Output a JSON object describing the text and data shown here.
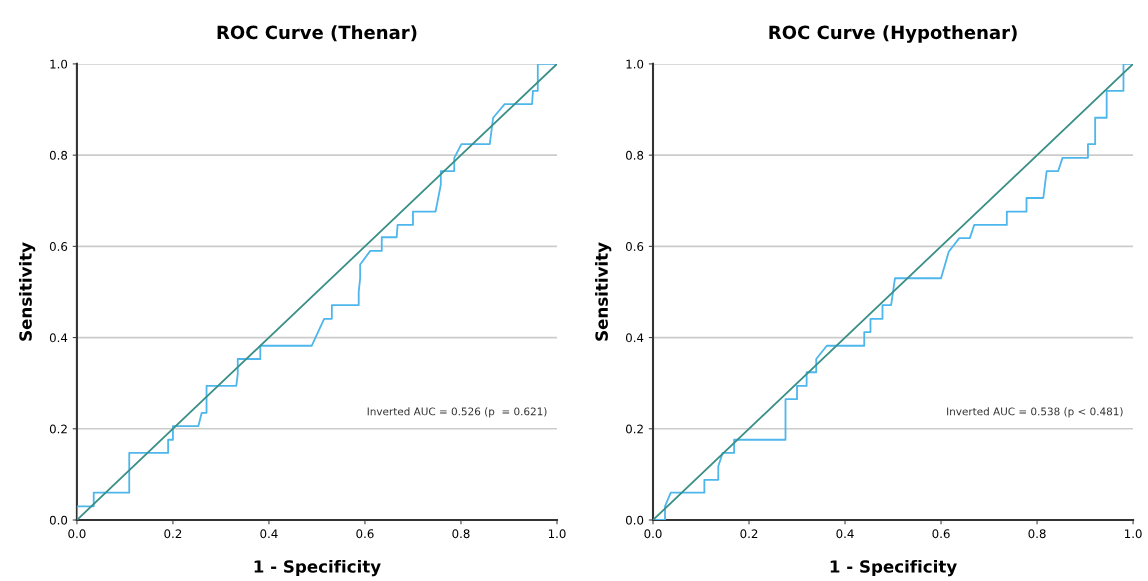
{
  "chart_data": [
    {
      "type": "line",
      "title": "ROC Curve (Thenar)",
      "xlabel": "1 - Specificity",
      "ylabel": "Sensitivity",
      "xlim": [
        0,
        1
      ],
      "ylim": [
        0,
        1
      ],
      "xticks": [
        {
          "value": 0,
          "label": "0.0"
        },
        {
          "value": 0.2,
          "label": "0.2"
        },
        {
          "value": 0.4,
          "label": "0.4"
        },
        {
          "value": 0.6,
          "label": "0.6"
        },
        {
          "value": 0.8,
          "label": "0.8"
        },
        {
          "value": 1,
          "label": "1.0"
        }
      ],
      "yticks": [
        {
          "value": 0,
          "label": "0.0"
        },
        {
          "value": 0.2,
          "label": "0.2"
        },
        {
          "value": 0.4,
          "label": "0.4"
        },
        {
          "value": 0.6,
          "label": "0.6"
        },
        {
          "value": 0.8,
          "label": "0.8"
        },
        {
          "value": 1,
          "label": "1.0"
        }
      ],
      "grid": "y",
      "marker": "none",
      "annotations": [
        "Inverted AUC = 0.526 (p  = 0.621)"
      ],
      "series": [
        {
          "color": "#4db6ec",
          "x": [
            0,
            0,
            0.035,
            0.035,
            0.109,
            0.109,
            0.19,
            0.19,
            0.2,
            0.2,
            0.253,
            0.26,
            0.27,
            0.27,
            0.332,
            0.335,
            0.335,
            0.382,
            0.382,
            0.489,
            0.515,
            0.531,
            0.531,
            0.587,
            0.587,
            0.59,
            0.59,
            0.611,
            0.635,
            0.635,
            0.666,
            0.668,
            0.7,
            0.7,
            0.747,
            0.758,
            0.758,
            0.786,
            0.786,
            0.801,
            0.86,
            0.867,
            0.891,
            0.948,
            0.95,
            0.96,
            0.96,
            1
          ],
          "values": [
            0,
            0.03,
            0.03,
            0.06,
            0.06,
            0.147,
            0.147,
            0.176,
            0.176,
            0.206,
            0.206,
            0.235,
            0.235,
            0.294,
            0.294,
            0.32,
            0.353,
            0.353,
            0.382,
            0.382,
            0.441,
            0.441,
            0.471,
            0.471,
            0.5,
            0.53,
            0.56,
            0.59,
            0.59,
            0.62,
            0.62,
            0.647,
            0.647,
            0.676,
            0.676,
            0.735,
            0.765,
            0.765,
            0.794,
            0.824,
            0.824,
            0.882,
            0.912,
            0.912,
            0.941,
            0.941,
            1,
            1
          ]
        },
        {
          "color": "#3a8f86",
          "x": [
            0,
            1
          ],
          "values": [
            0,
            1
          ]
        }
      ]
    },
    {
      "type": "line",
      "title": "ROC Curve (Hypothenar)",
      "xlabel": "1 - Specificity",
      "ylabel": "Sensitivity",
      "xlim": [
        0,
        1
      ],
      "ylim": [
        0,
        1
      ],
      "xticks": [
        {
          "value": 0,
          "label": "0.0"
        },
        {
          "value": 0.2,
          "label": "0.2"
        },
        {
          "value": 0.4,
          "label": "0.4"
        },
        {
          "value": 0.6,
          "label": "0.6"
        },
        {
          "value": 0.8,
          "label": "0.8"
        },
        {
          "value": 1,
          "label": "1.0"
        }
      ],
      "yticks": [
        {
          "value": 0,
          "label": "0.0"
        },
        {
          "value": 0.2,
          "label": "0.2"
        },
        {
          "value": 0.4,
          "label": "0.4"
        },
        {
          "value": 0.6,
          "label": "0.6"
        },
        {
          "value": 0.8,
          "label": "0.8"
        },
        {
          "value": 1,
          "label": "1.0"
        }
      ],
      "grid": "y",
      "marker": "none",
      "annotations": [
        "Inverted AUC = 0.538 (p < 0.481)"
      ],
      "series": [
        {
          "color": "#4db6ec",
          "x": [
            0,
            0.025,
            0.025,
            0.037,
            0.037,
            0.107,
            0.107,
            0.136,
            0.136,
            0.145,
            0.169,
            0.169,
            0.276,
            0.276,
            0.3,
            0.3,
            0.32,
            0.32,
            0.34,
            0.34,
            0.362,
            0.44,
            0.44,
            0.453,
            0.453,
            0.478,
            0.478,
            0.496,
            0.504,
            0.6,
            0.616,
            0.638,
            0.66,
            0.669,
            0.737,
            0.737,
            0.778,
            0.778,
            0.813,
            0.82,
            0.844,
            0.853,
            0.906,
            0.906,
            0.921,
            0.921,
            0.945,
            0.945,
            0.98,
            0.98,
            1
          ],
          "values": [
            0,
            0,
            0.03,
            0.06,
            0.06,
            0.06,
            0.088,
            0.088,
            0.118,
            0.147,
            0.147,
            0.176,
            0.176,
            0.265,
            0.265,
            0.294,
            0.294,
            0.324,
            0.324,
            0.353,
            0.382,
            0.382,
            0.412,
            0.412,
            0.441,
            0.441,
            0.471,
            0.471,
            0.53,
            0.53,
            0.588,
            0.618,
            0.618,
            0.647,
            0.647,
            0.676,
            0.676,
            0.706,
            0.706,
            0.765,
            0.765,
            0.794,
            0.794,
            0.824,
            0.824,
            0.882,
            0.882,
            0.941,
            0.941,
            1,
            1
          ]
        },
        {
          "color": "#3a8f86",
          "x": [
            0,
            1
          ],
          "values": [
            0,
            1
          ]
        }
      ]
    }
  ]
}
